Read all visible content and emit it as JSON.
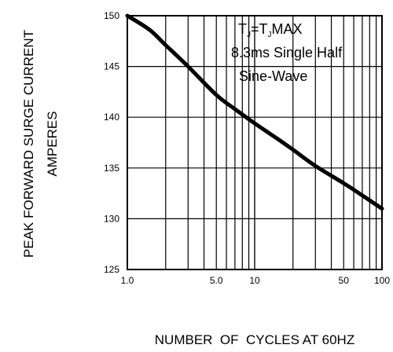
{
  "chart_data": {
    "type": "line",
    "title": "",
    "xlabel": "NUMBER  OF  CYCLES AT 60HZ",
    "ylabel_line1": "PEAK FORWARD SURGE CURRENT",
    "ylabel_line2": "AMPERES",
    "x_scale": "log",
    "xlim": [
      1,
      100
    ],
    "ylim": [
      125,
      150
    ],
    "grid": true,
    "x_ticks": [
      1,
      5,
      10,
      50,
      100
    ],
    "x_tick_labels": [
      "1.0",
      "5.0",
      "10",
      "50",
      "100"
    ],
    "y_ticks": [
      125,
      130,
      135,
      140,
      145,
      150
    ],
    "y_tick_labels": [
      "125",
      "130",
      "135",
      "140",
      "145",
      "150"
    ],
    "annotation": {
      "line1_T": "T",
      "line1_sub1": "J",
      "line1_eq": "=T",
      "line1_sub2": "J",
      "line1_max": "MAX",
      "line2": "8.3ms Single Half",
      "line3": "Sine-Wave"
    },
    "series": [
      {
        "x": [
          1,
          1.5,
          2,
          3,
          5,
          7,
          10,
          15,
          20,
          30,
          50,
          70,
          100
        ],
        "values": [
          150,
          148.6,
          147.1,
          145.0,
          142.2,
          140.8,
          139.4,
          137.9,
          136.8,
          135.2,
          133.5,
          132.3,
          131.0
        ]
      }
    ]
  }
}
